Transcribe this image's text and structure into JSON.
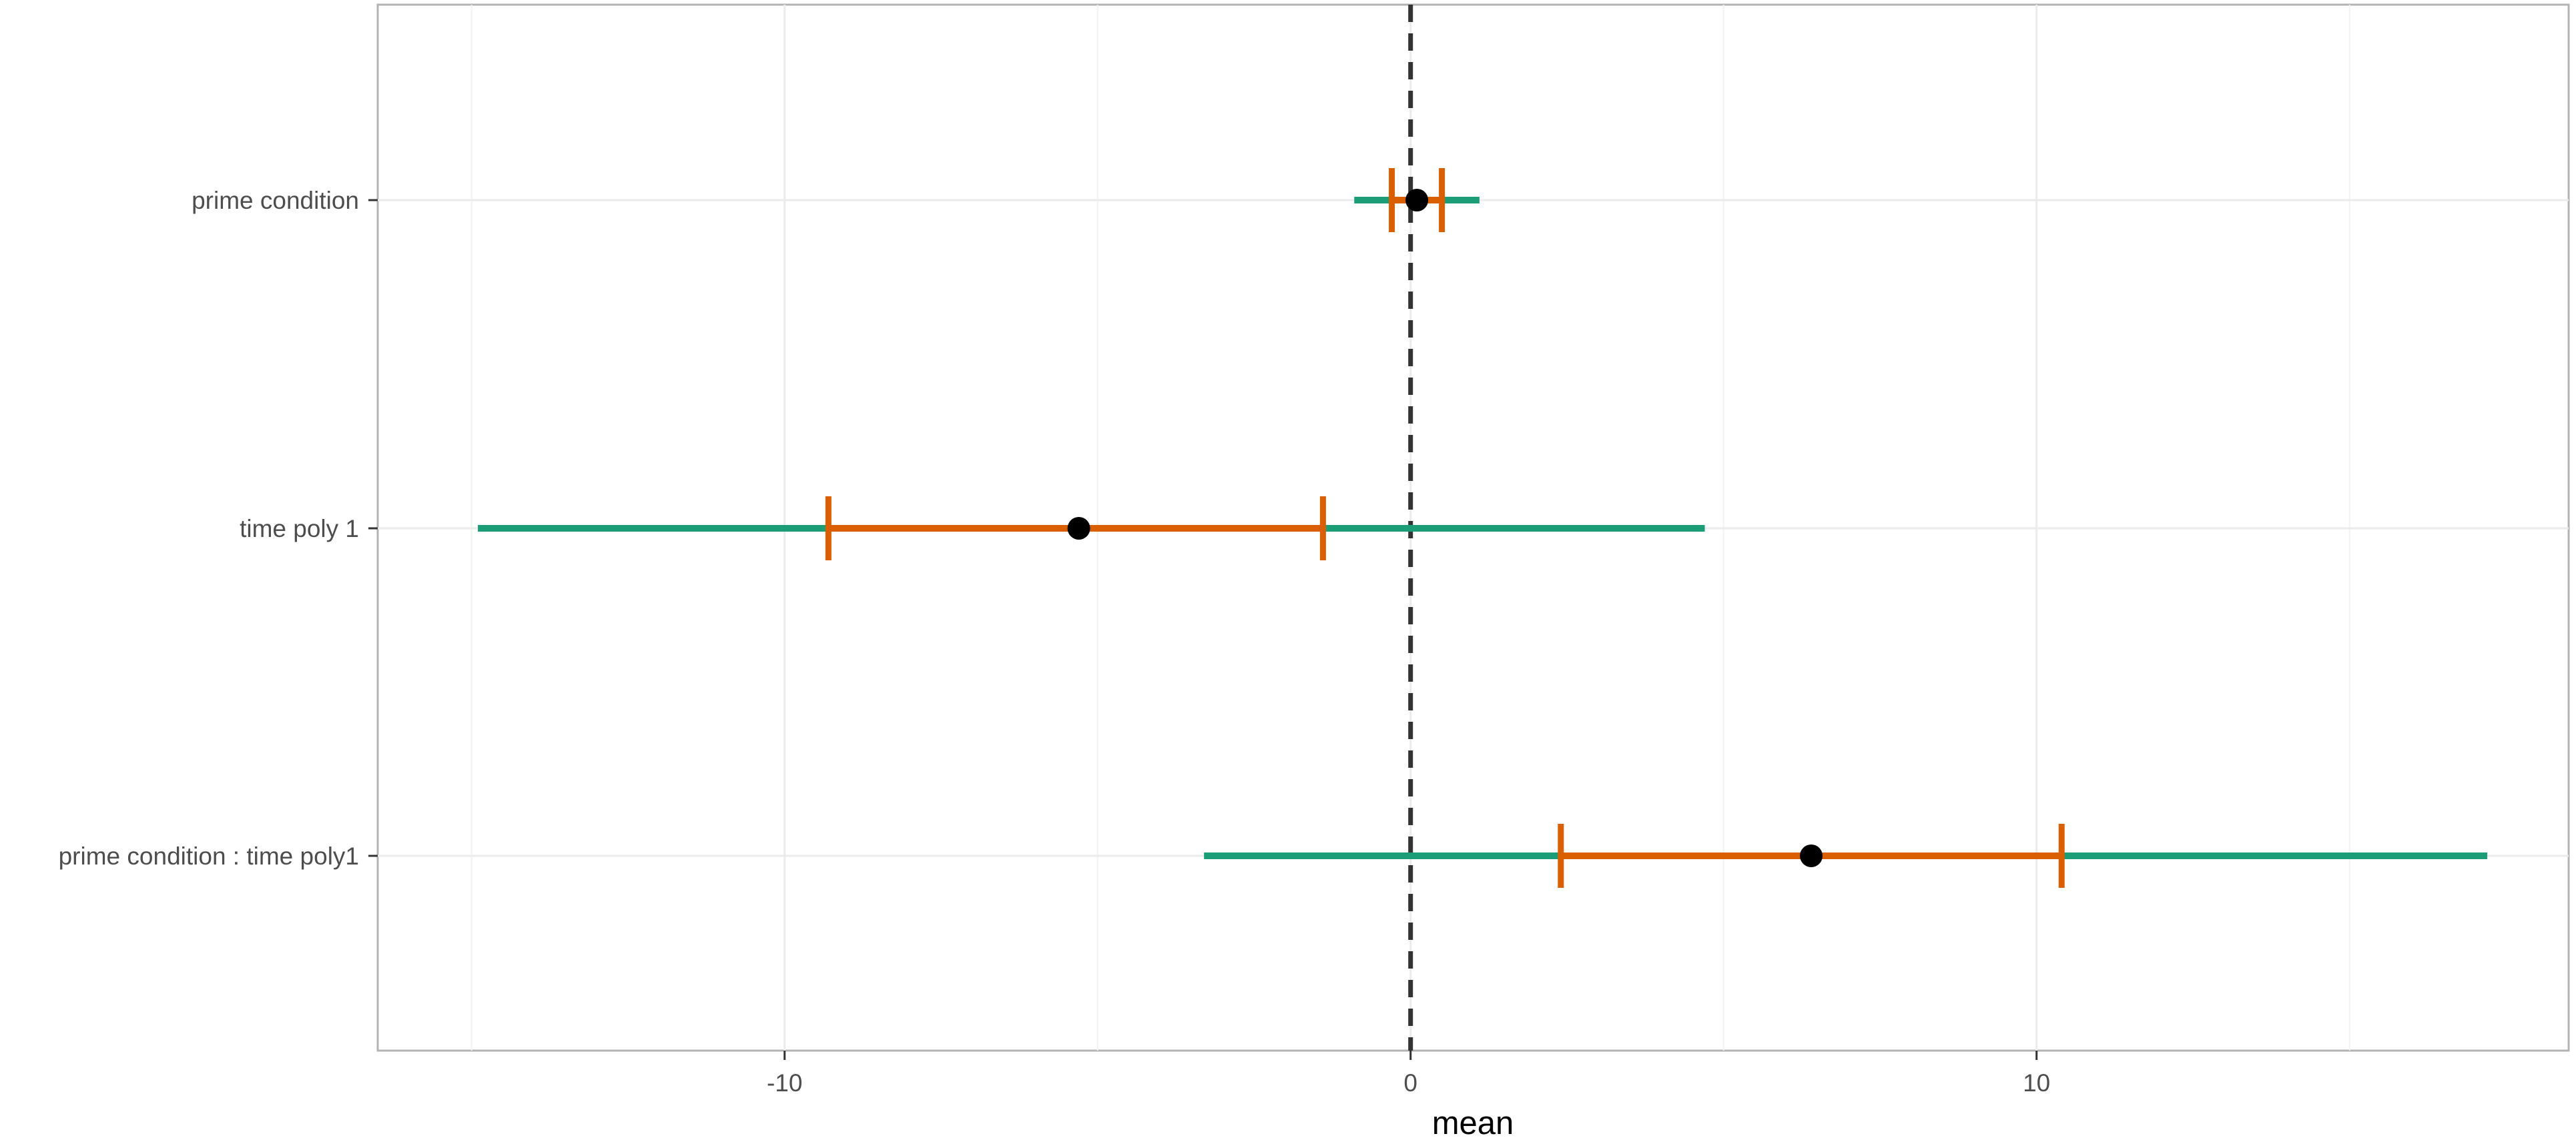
{
  "chart_data": {
    "type": "forest",
    "xlabel": "mean",
    "ylabel": "",
    "xlim": [
      -16.5,
      18.5
    ],
    "x_ticks": [
      -10,
      0,
      10
    ],
    "x_tick_labels": [
      "-10",
      "0",
      "10"
    ],
    "x_minor_ticks": [
      -15,
      -5,
      5,
      15
    ],
    "reference_line": 0,
    "categories": [
      "prime condition",
      "time poly 1",
      "prime condition : time poly1"
    ],
    "outer_interval": {
      "color": "#1b9e77",
      "low": [
        -0.9,
        -14.9,
        -3.3
      ],
      "high": [
        1.1,
        4.7,
        17.2
      ]
    },
    "inner_interval": {
      "color": "#d95f02",
      "low": [
        -0.3,
        -9.3,
        2.4
      ],
      "high": [
        0.5,
        -1.4,
        10.4
      ]
    },
    "point_estimate": {
      "color": "#000000",
      "values": [
        0.1,
        -5.3,
        6.4
      ]
    },
    "grid": true,
    "legend": "none",
    "reference_line_color": "#333333"
  }
}
